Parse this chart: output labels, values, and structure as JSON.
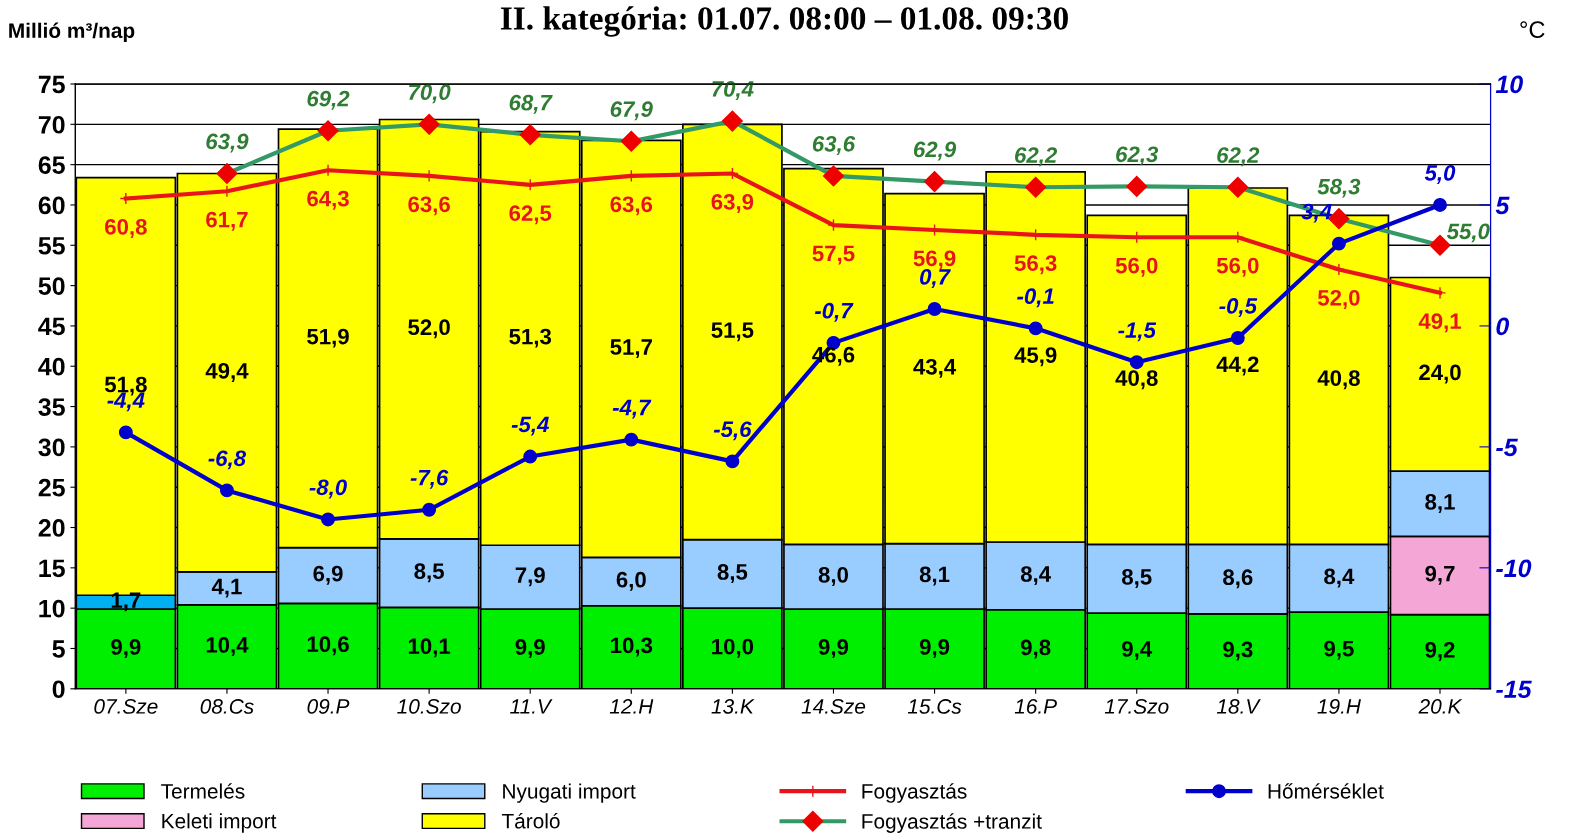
{
  "chart_data": {
    "type": "bar",
    "title": "II. kategória: 01.07. 08:00 – 01.08. 09:30",
    "ylabel": "Millió m³/nap",
    "y2label": "°C",
    "categories": [
      "07.Sze",
      "08.Cs",
      "09.P",
      "10.Szo",
      "11.V",
      "12.H",
      "13.K",
      "14.Sze",
      "15.Cs",
      "16.P",
      "17.Szo",
      "18.V",
      "19.H",
      "20.K"
    ],
    "stacked": true,
    "grid": "y",
    "legend": "bottom",
    "ylim": [
      0,
      75
    ],
    "yticks": [
      0,
      5,
      10,
      15,
      20,
      25,
      30,
      35,
      40,
      45,
      50,
      55,
      60,
      65,
      70,
      75
    ],
    "y2lim": [
      -15,
      10
    ],
    "y2ticks": [
      -15,
      -10,
      -5,
      0,
      5,
      10
    ],
    "series": [
      {
        "name": "Termelés",
        "color": "#00ee00",
        "values": [
          9.9,
          10.4,
          10.6,
          10.1,
          9.9,
          10.3,
          10.0,
          9.9,
          9.9,
          9.8,
          9.4,
          9.3,
          9.5,
          9.2
        ],
        "value_labels": [
          "9,9",
          "10,4",
          "10,6",
          "10,1",
          "9,9",
          "10,3",
          "10,0",
          "9,9",
          "9,9",
          "9,8",
          "9,4",
          "9,3",
          "9,5",
          "9,2"
        ]
      },
      {
        "name": "Keleti import",
        "color": "#f4a6d7",
        "values": [
          null,
          null,
          null,
          null,
          null,
          null,
          null,
          null,
          null,
          null,
          null,
          null,
          null,
          9.7
        ],
        "value_labels": [
          null,
          null,
          null,
          null,
          null,
          null,
          null,
          null,
          null,
          null,
          null,
          null,
          null,
          "9,7"
        ]
      },
      {
        "name": "Nyugati import",
        "color": "#99ccff",
        "colors": [
          "#00b0f0",
          "#99ccff",
          "#99ccff",
          "#99ccff",
          "#99ccff",
          "#99ccff",
          "#99ccff",
          "#99ccff",
          "#99ccff",
          "#99ccff",
          "#99ccff",
          "#99ccff",
          "#99ccff",
          "#99ccff"
        ],
        "values": [
          1.7,
          4.1,
          6.9,
          8.5,
          7.9,
          6.0,
          8.5,
          8.0,
          8.1,
          8.4,
          8.5,
          8.6,
          8.4,
          8.1
        ],
        "value_labels": [
          "1,7",
          "4,1",
          "6,9",
          "8,5",
          "7,9",
          "6,0",
          "8,5",
          "8,0",
          "8,1",
          "8,4",
          "8,5",
          "8,6",
          "8,4",
          "8,1"
        ]
      },
      {
        "name": "Tároló",
        "color": "#ffff00",
        "values": [
          51.8,
          49.4,
          51.9,
          52.0,
          51.3,
          51.7,
          51.5,
          46.6,
          43.4,
          45.9,
          40.8,
          44.2,
          40.8,
          24.0
        ],
        "value_labels": [
          "51,8",
          "49,4",
          "51,9",
          "52,0",
          "51,3",
          "51,7",
          "51,5",
          "46,6",
          "43,4",
          "45,9",
          "40,8",
          "44,2",
          "40,8",
          "24,0"
        ]
      },
      {
        "name": "Fogyasztás",
        "type": "line",
        "color": "#e8141c",
        "marker": "cross",
        "values": [
          60.8,
          61.7,
          64.3,
          63.6,
          62.5,
          63.6,
          63.9,
          57.5,
          56.9,
          56.3,
          56.0,
          56.0,
          52.0,
          49.1
        ],
        "value_labels": [
          "60,8",
          "61,7",
          "64,3",
          "63,6",
          "62,5",
          "63,6",
          "63,9",
          "57,5",
          "56,9",
          "56,3",
          "56,0",
          "56,0",
          "52,0",
          "49,1"
        ]
      },
      {
        "name": "Fogyasztás +tranzit",
        "type": "line",
        "color": "#339966",
        "colors": [
          "#ee0000",
          "#ee0000",
          "#ee0000",
          "#ee0000",
          "#ee0000",
          "#ee0000",
          "#ee0000",
          "#ee0000",
          "#ee0000",
          "#ee0000",
          "#ee0000",
          "#ee0000",
          "#ee0000",
          "#ee0000"
        ],
        "marker": "diamond",
        "values": [
          null,
          63.9,
          69.2,
          70.0,
          68.7,
          67.9,
          70.4,
          63.6,
          62.9,
          62.2,
          62.3,
          62.2,
          58.3,
          55.0
        ],
        "value_labels": [
          null,
          "63,9",
          "69,2",
          "70,0",
          "68,7",
          "67,9",
          "70,4",
          "63,6",
          "62,9",
          "62,2",
          "62,3",
          "62,2",
          "58,3",
          "55,0"
        ]
      },
      {
        "name": "Hőmérséklet",
        "type": "line",
        "axis": "y2",
        "color": "#0000cc",
        "marker": "circle",
        "values": [
          -4.4,
          -6.8,
          -8.0,
          -7.6,
          -5.4,
          -4.7,
          -5.6,
          -0.7,
          0.7,
          -0.1,
          -1.5,
          -0.5,
          3.4,
          5.0
        ],
        "value_labels": [
          "-4,4",
          "-6,8",
          "-8,0",
          "-7,6",
          "-5,4",
          "-4,7",
          "-5,6",
          "-0,7",
          "0,7",
          "-0,1",
          "-1,5",
          "-0,5",
          "3,4",
          "5,0"
        ]
      }
    ]
  }
}
